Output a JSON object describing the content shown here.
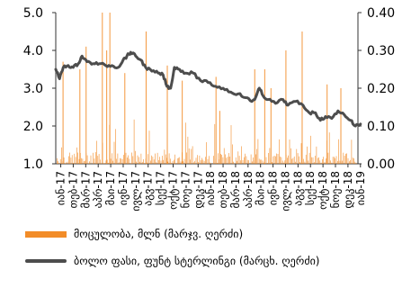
{
  "chart_data": {
    "type": "bar+line",
    "x_tick_labels": [
      "იან-17",
      "თებ-17",
      "მარ-17",
      "აპრ-17",
      "მაი-17",
      "ივნ-17",
      "ივლ-17",
      "აგვ-17",
      "სექ-17",
      "ოქტ-17",
      "ნოე-17",
      "დეკ-17",
      "იან-18",
      "თებ-18",
      "მარ-18",
      "აპრ-18",
      "მაი-18",
      "ივნ-18",
      "ივლ-18",
      "აგვ-18",
      "სექ-18",
      "ოქტ-18",
      "ნოე-18",
      "დეკ-18",
      "იან-19"
    ],
    "left_axis": {
      "ticks": [
        "1.0",
        "2.0",
        "3.0",
        "4.0",
        "5.0"
      ],
      "ylim": [
        1.0,
        5.0
      ]
    },
    "right_axis": {
      "ticks": [
        "0.00",
        "0.10",
        "0.20",
        "0.30",
        "0.40"
      ],
      "ylim": [
        0.0,
        0.4
      ]
    },
    "series": [
      {
        "name": "მოცულობა, მლნ (მარჯვ. ღერძი)",
        "kind": "bar",
        "axis": "right",
        "color": "#f28c28",
        "note_values": "approximate daily volumes read from chart (right axis)",
        "peaks": [
          {
            "x": 0.55,
            "value": 0.27
          },
          {
            "x": 1.9,
            "value": 0.25
          },
          {
            "x": 2.4,
            "value": 0.31
          },
          {
            "x": 3.7,
            "value": 0.45
          },
          {
            "x": 4.05,
            "value": 0.3
          },
          {
            "x": 4.3,
            "value": 0.42
          },
          {
            "x": 5.5,
            "value": 0.24
          },
          {
            "x": 7.2,
            "value": 0.35
          },
          {
            "x": 8.9,
            "value": 0.26
          },
          {
            "x": 10.1,
            "value": 0.22
          },
          {
            "x": 12.8,
            "value": 0.23
          },
          {
            "x": 13.1,
            "value": 0.14
          },
          {
            "x": 15.9,
            "value": 0.25
          },
          {
            "x": 16.7,
            "value": 0.25
          },
          {
            "x": 17.2,
            "value": 0.2
          },
          {
            "x": 18.4,
            "value": 0.3
          },
          {
            "x": 19.7,
            "value": 0.35
          },
          {
            "x": 21.7,
            "value": 0.21
          },
          {
            "x": 22.8,
            "value": 0.2
          }
        ],
        "baseline_level": 0.03
      },
      {
        "name": "ბოლო ფასი, ფუნტ სტერლინგი (მარცხ. ღერძი)",
        "kind": "line",
        "axis": "left",
        "color": "#4d4d4d",
        "points": [
          [
            0.0,
            3.5
          ],
          [
            0.3,
            3.25
          ],
          [
            0.6,
            3.55
          ],
          [
            1.0,
            3.6
          ],
          [
            1.4,
            3.55
          ],
          [
            1.8,
            3.65
          ],
          [
            2.1,
            3.85
          ],
          [
            2.5,
            3.7
          ],
          [
            3.0,
            3.65
          ],
          [
            3.5,
            3.65
          ],
          [
            4.0,
            3.6
          ],
          [
            4.5,
            3.6
          ],
          [
            5.0,
            3.55
          ],
          [
            5.4,
            3.75
          ],
          [
            5.7,
            3.85
          ],
          [
            6.0,
            3.95
          ],
          [
            6.4,
            3.85
          ],
          [
            6.8,
            3.75
          ],
          [
            7.2,
            3.55
          ],
          [
            7.7,
            3.45
          ],
          [
            8.2,
            3.4
          ],
          [
            8.6,
            3.35
          ],
          [
            8.9,
            3.05
          ],
          [
            9.2,
            3.0
          ],
          [
            9.5,
            3.55
          ],
          [
            9.9,
            3.5
          ],
          [
            10.4,
            3.4
          ],
          [
            11.0,
            3.4
          ],
          [
            11.6,
            3.2
          ],
          [
            12.2,
            3.15
          ],
          [
            12.8,
            3.05
          ],
          [
            13.4,
            3.0
          ],
          [
            14.0,
            2.9
          ],
          [
            14.6,
            2.85
          ],
          [
            15.2,
            2.75
          ],
          [
            15.7,
            2.65
          ],
          [
            16.0,
            2.75
          ],
          [
            16.3,
            3.0
          ],
          [
            16.6,
            2.8
          ],
          [
            17.0,
            2.7
          ],
          [
            17.6,
            2.6
          ],
          [
            18.2,
            2.7
          ],
          [
            18.6,
            2.55
          ],
          [
            19.2,
            2.65
          ],
          [
            19.8,
            2.55
          ],
          [
            20.3,
            2.35
          ],
          [
            20.8,
            2.35
          ],
          [
            21.2,
            2.15
          ],
          [
            21.6,
            2.25
          ],
          [
            22.1,
            2.2
          ],
          [
            22.6,
            2.4
          ],
          [
            23.1,
            2.3
          ],
          [
            23.6,
            2.15
          ],
          [
            24.0,
            2.0
          ],
          [
            24.4,
            2.05
          ]
        ]
      }
    ],
    "legend_position": "bottom"
  },
  "colors": {
    "volume_bar": "#f28c28",
    "price_line": "#4d4d4d",
    "axis": "#333333"
  }
}
